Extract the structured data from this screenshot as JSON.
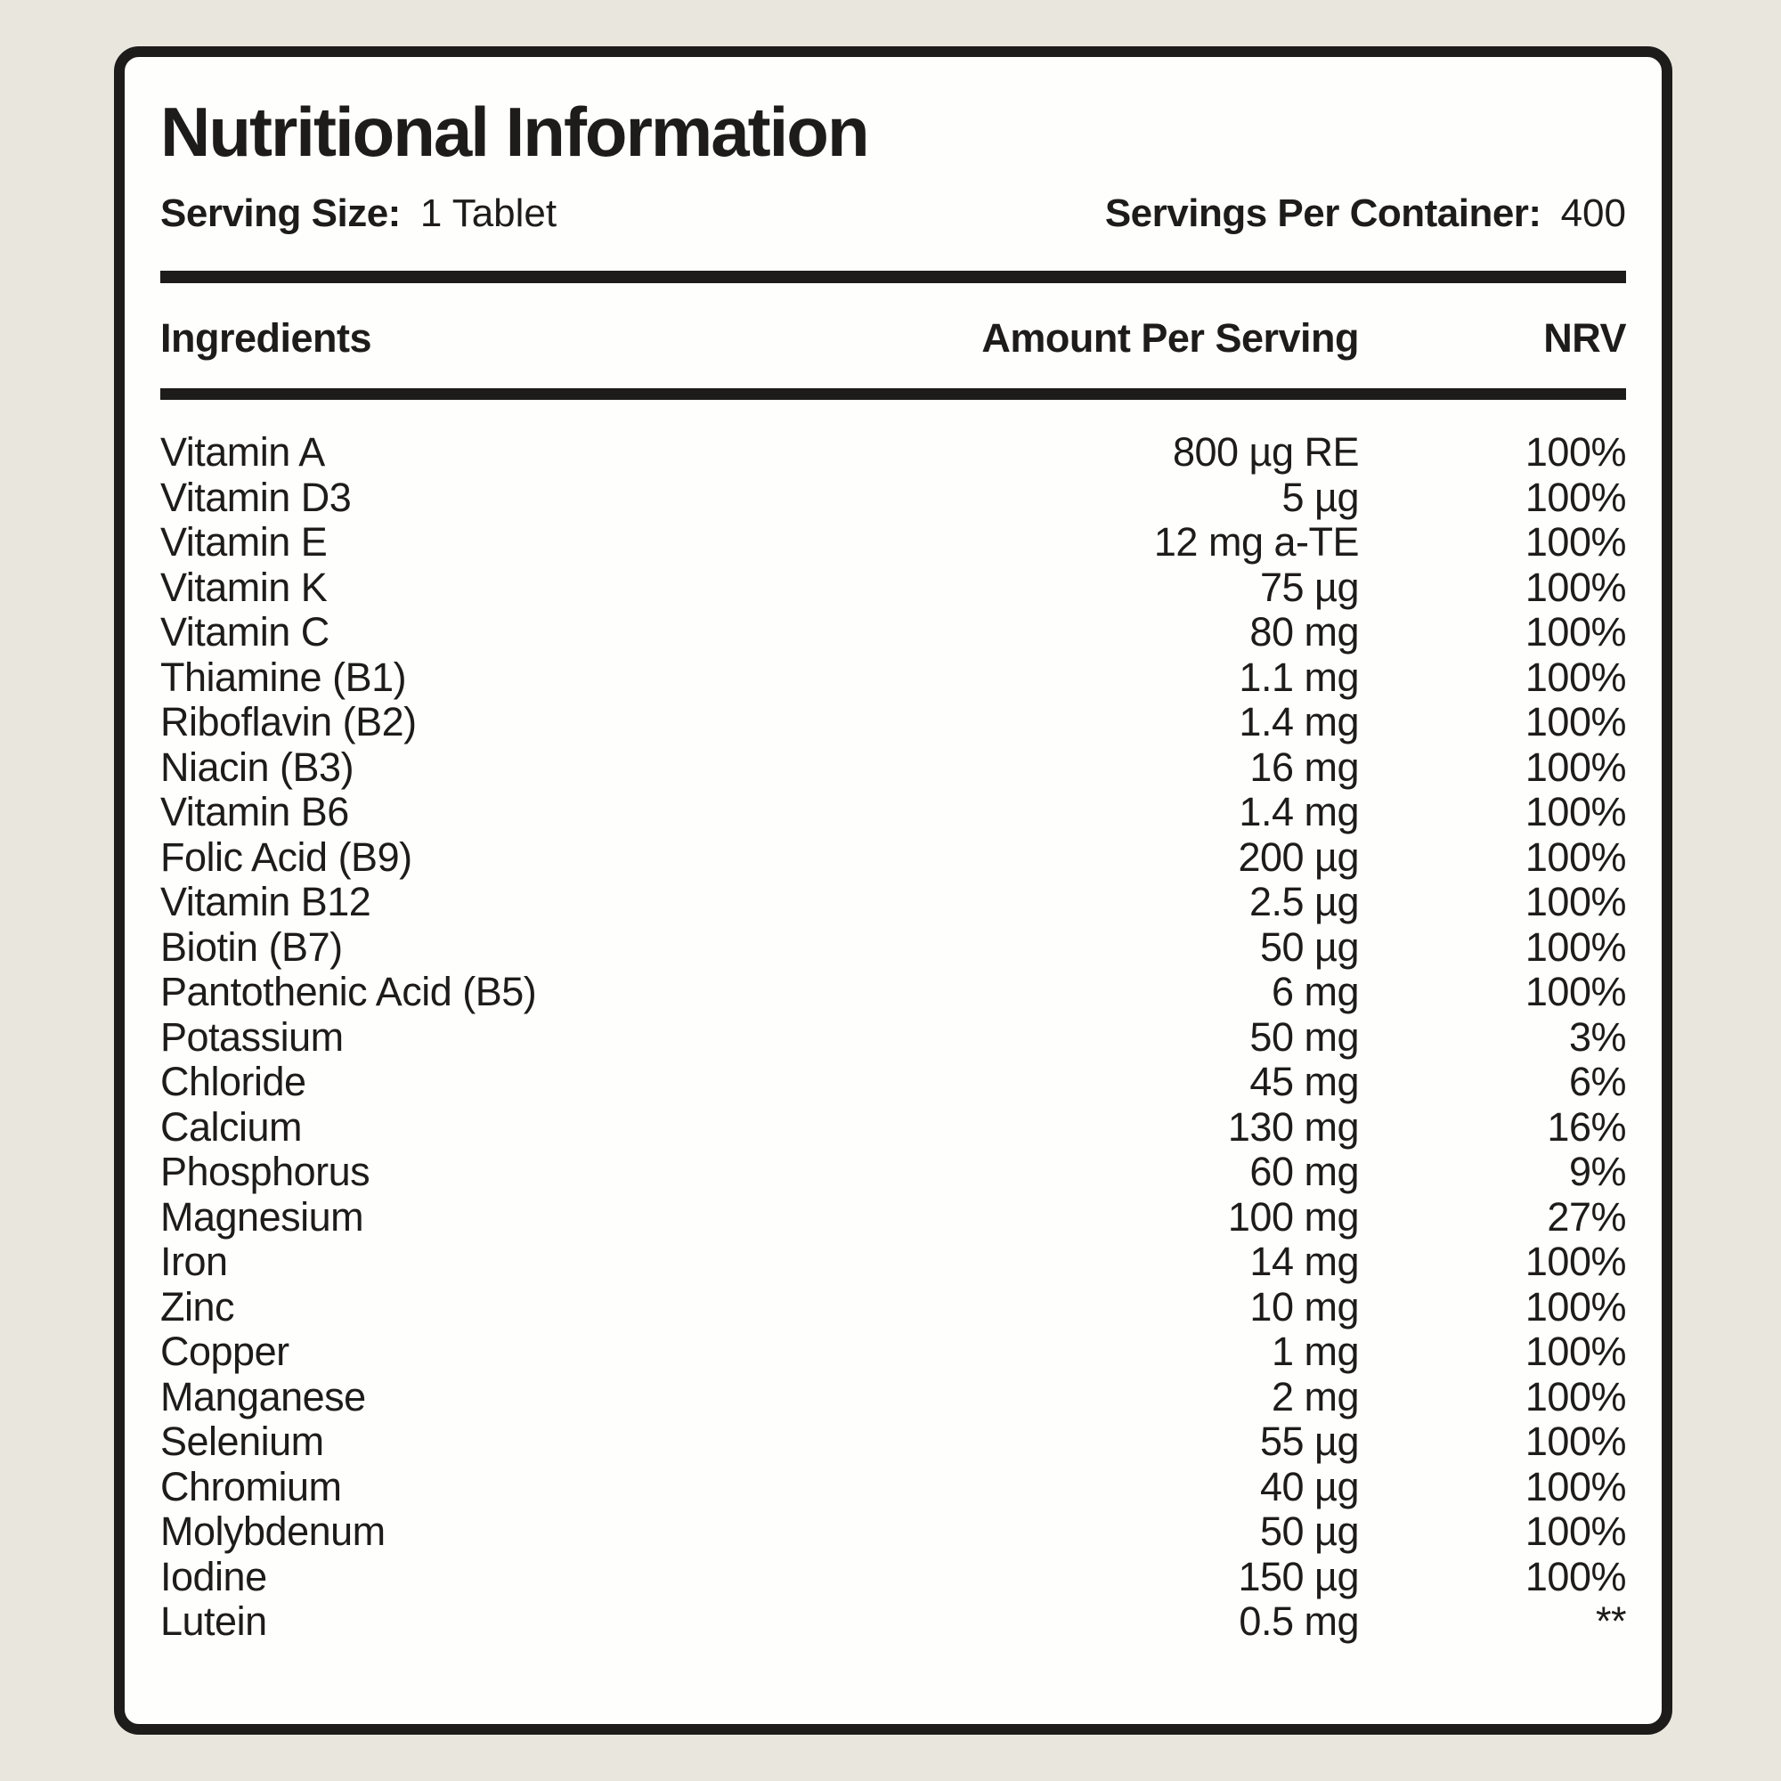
{
  "colors": {
    "background": "#e9e6de",
    "card": "#fefefc",
    "text": "#1e1c1a"
  },
  "header": {
    "title": "Nutritional Information",
    "serving_size_label": "Serving Size:",
    "serving_size_value": "1 Tablet",
    "servings_per_container_label": "Servings Per Container:",
    "servings_per_container_value": "400"
  },
  "table": {
    "columns": {
      "ingredients": "Ingredients",
      "amount": "Amount Per Serving",
      "nrv": "NRV"
    },
    "rows": [
      {
        "name": "Vitamin A",
        "amount": "800 µg RE",
        "nrv": "100%"
      },
      {
        "name": "Vitamin D3",
        "amount": "5 µg",
        "nrv": "100%"
      },
      {
        "name": "Vitamin E",
        "amount": "12 mg a-TE",
        "nrv": "100%"
      },
      {
        "name": "Vitamin K",
        "amount": "75 µg",
        "nrv": "100%"
      },
      {
        "name": "Vitamin C",
        "amount": "80 mg",
        "nrv": "100%"
      },
      {
        "name": "Thiamine (B1)",
        "amount": "1.1 mg",
        "nrv": "100%"
      },
      {
        "name": "Riboflavin (B2)",
        "amount": "1.4 mg",
        "nrv": "100%"
      },
      {
        "name": "Niacin (B3)",
        "amount": "16 mg",
        "nrv": "100%"
      },
      {
        "name": "Vitamin B6",
        "amount": "1.4 mg",
        "nrv": "100%"
      },
      {
        "name": "Folic Acid (B9)",
        "amount": "200 µg",
        "nrv": "100%"
      },
      {
        "name": "Vitamin B12",
        "amount": "2.5 µg",
        "nrv": "100%"
      },
      {
        "name": "Biotin (B7)",
        "amount": "50 µg",
        "nrv": "100%"
      },
      {
        "name": "Pantothenic Acid (B5)",
        "amount": "6 mg",
        "nrv": "100%"
      },
      {
        "name": "Potassium",
        "amount": "50 mg",
        "nrv": "3%"
      },
      {
        "name": "Chloride",
        "amount": "45 mg",
        "nrv": "6%"
      },
      {
        "name": "Calcium",
        "amount": "130 mg",
        "nrv": "16%"
      },
      {
        "name": "Phosphorus",
        "amount": "60 mg",
        "nrv": "9%"
      },
      {
        "name": "Magnesium",
        "amount": "100 mg",
        "nrv": "27%"
      },
      {
        "name": "Iron",
        "amount": "14 mg",
        "nrv": "100%"
      },
      {
        "name": "Zinc",
        "amount": "10 mg",
        "nrv": "100%"
      },
      {
        "name": "Copper",
        "amount": "1 mg",
        "nrv": "100%"
      },
      {
        "name": "Manganese",
        "amount": "2 mg",
        "nrv": "100%"
      },
      {
        "name": "Selenium",
        "amount": "55 µg",
        "nrv": "100%"
      },
      {
        "name": "Chromium",
        "amount": "40 µg",
        "nrv": "100%"
      },
      {
        "name": "Molybdenum",
        "amount": "50 µg",
        "nrv": "100%"
      },
      {
        "name": "Iodine",
        "amount": "150 µg",
        "nrv": "100%"
      },
      {
        "name": "Lutein",
        "amount": "0.5 mg",
        "nrv": "**"
      }
    ]
  }
}
